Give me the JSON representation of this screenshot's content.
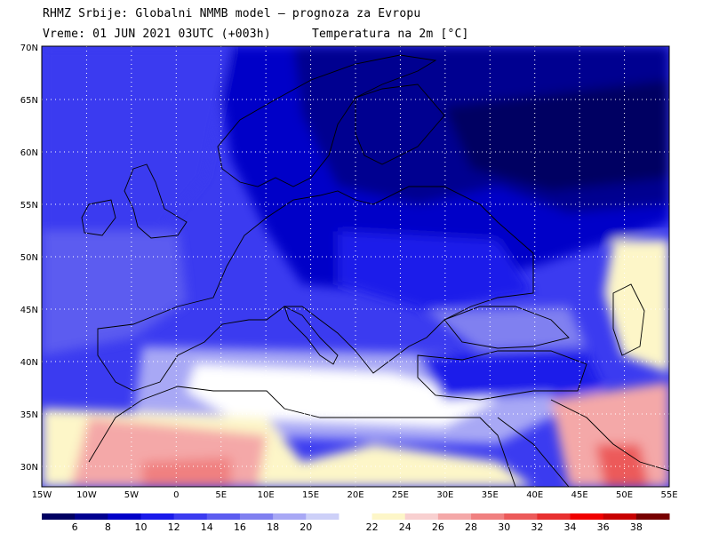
{
  "header": {
    "line1": "RHMZ Srbije: Globalni NMMB model — prognoza za Evropu",
    "line2_time": "Vreme: 01 JUN 2021 03UTC (+003h)",
    "line2_field": "Temperatura na 2m [°C]"
  },
  "map": {
    "lat_labels": [
      "70N",
      "65N",
      "60N",
      "55N",
      "50N",
      "45N",
      "40N",
      "35N",
      "30N"
    ],
    "lon_labels": [
      "15W",
      "10W",
      "5W",
      "0",
      "5E",
      "10E",
      "15E",
      "20E",
      "25E",
      "30E",
      "35E",
      "40E",
      "45E",
      "50E",
      "55E"
    ]
  },
  "colorbar": {
    "colors": [
      "#000062",
      "#000090",
      "#0000c8",
      "#1a1aea",
      "#3b3bf0",
      "#5c5cf0",
      "#8080f0",
      "#a8a8f5",
      "#cdd0f8",
      "#ffffff",
      "#fdf6c8",
      "#f8d0d0",
      "#f4a8a8",
      "#f08080",
      "#ec5a5a",
      "#e83030",
      "#f00000",
      "#c80000",
      "#780000"
    ],
    "labels": [
      "6",
      "8",
      "10",
      "12",
      "14",
      "16",
      "18",
      "20",
      "22",
      "24",
      "26",
      "28",
      "30",
      "32",
      "34",
      "36",
      "38"
    ]
  },
  "colors": {
    "frame": "#000000",
    "grid": "#ffffff"
  }
}
